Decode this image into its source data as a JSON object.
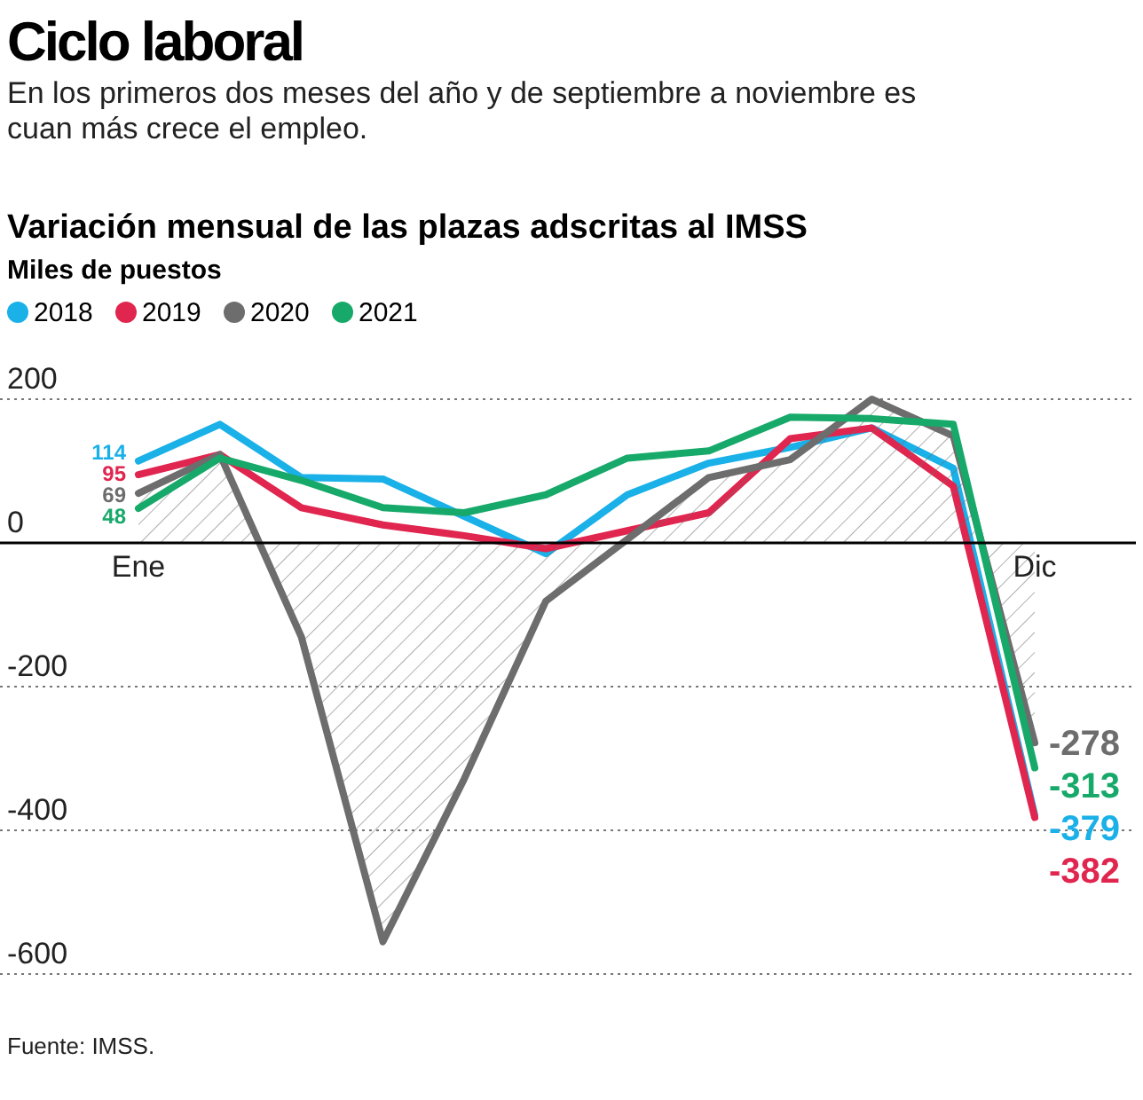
{
  "chart_data": {
    "type": "line",
    "title": "Variación mensual de las plazas adscritas al IMSS",
    "subtitle": "Ciclo laboral\nEn los primeros dos meses del año y de septiembre a noviembre es cuan más crece el empleo.",
    "ylabel": "Miles de puestos",
    "categories": [
      "Ene",
      null,
      null,
      null,
      null,
      null,
      null,
      null,
      null,
      null,
      null,
      "Dic"
    ],
    "series": [
      {
        "name": "2018",
        "color": "#1ab0e8",
        "values": [
          114,
          165,
          91,
          89,
          37,
          -15,
          67,
          111,
          133,
          160,
          104,
          -379
        ],
        "value_labels": [
          "114",
          null,
          null,
          null,
          null,
          null,
          null,
          null,
          null,
          null,
          null,
          "-379"
        ]
      },
      {
        "name": "2019",
        "color": "#e0254f",
        "values": [
          95,
          123,
          49,
          25,
          10,
          -8,
          17,
          42,
          145,
          160,
          79,
          -382
        ],
        "value_labels": [
          "95",
          null,
          null,
          null,
          null,
          null,
          null,
          null,
          null,
          null,
          null,
          "-382"
        ]
      },
      {
        "name": "2020",
        "type": "area",
        "color": "#6d6d6d",
        "values": [
          69,
          123,
          -131,
          -555,
          -328,
          -81,
          5,
          91,
          116,
          200,
          149,
          -278
        ],
        "value_labels": [
          "69",
          null,
          null,
          null,
          null,
          null,
          null,
          null,
          null,
          null,
          null,
          "-278"
        ]
      },
      {
        "name": "2021",
        "color": "#17a96a",
        "values": [
          48,
          118,
          87,
          49,
          42,
          67,
          118,
          128,
          175,
          173,
          165,
          -313
        ],
        "value_labels": [
          "48",
          null,
          null,
          null,
          null,
          null,
          null,
          null,
          null,
          null,
          null,
          "-313"
        ]
      }
    ],
    "ylim": [
      -600,
      200
    ],
    "yticks": [
      -600,
      -400,
      -200,
      0,
      200
    ],
    "grid": "y",
    "legend": "top left",
    "annotations": [
      "Fuente: IMSS."
    ]
  }
}
